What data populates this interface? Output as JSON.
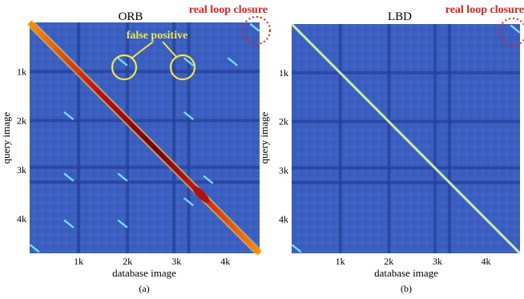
{
  "figure_colors": {
    "background_blue": "#3a5fc0",
    "dark_band_blue": "#243f96",
    "diagonal_red": "#b01010",
    "diagonal_orange": "#ff8c00",
    "cyan_blob": "#7fe6ff",
    "annotation_yellow": "#f2e64a",
    "annotation_red": "#e8201e"
  },
  "chart_data": [
    {
      "type": "heatmap",
      "title": "ORB",
      "xlabel": "database image",
      "ylabel": "query image",
      "xticks": [
        "1k",
        "2k",
        "3k",
        "4k"
      ],
      "yticks": [
        "1k",
        "2k",
        "3k",
        "4k"
      ],
      "xlim": [
        0,
        4700
      ],
      "ylim": [
        0,
        4700
      ],
      "caption": "(a)",
      "annotations": [
        "false positive",
        "real loop closure"
      ],
      "diagonal_strength": "high",
      "off_diagonal_blobs": [
        {
          "x": 1900,
          "y": 800
        },
        {
          "x": 3250,
          "y": 800
        },
        {
          "x": 800,
          "y": 1900
        },
        {
          "x": 4150,
          "y": 800
        },
        {
          "x": 3250,
          "y": 1900
        },
        {
          "x": 800,
          "y": 3150
        },
        {
          "x": 1900,
          "y": 3150
        },
        {
          "x": 3250,
          "y": 3650
        },
        {
          "x": 3650,
          "y": 3200
        },
        {
          "x": 800,
          "y": 4100
        },
        {
          "x": 1900,
          "y": 4100
        },
        {
          "x": 4600,
          "y": 100
        },
        {
          "x": 100,
          "y": 4600
        }
      ]
    },
    {
      "type": "heatmap",
      "title": "LBD",
      "xlabel": "database image",
      "ylabel": "query image",
      "xticks": [
        "1k",
        "2k",
        "3k",
        "4k"
      ],
      "yticks": [
        "1k",
        "2k",
        "3k",
        "4k"
      ],
      "xlim": [
        0,
        4700
      ],
      "ylim": [
        0,
        4700
      ],
      "caption": "(b)",
      "annotations": [
        "real loop closure"
      ],
      "diagonal_strength": "low",
      "off_diagonal_blobs": [
        {
          "x": 4600,
          "y": 100
        },
        {
          "x": 100,
          "y": 4600
        }
      ]
    }
  ]
}
